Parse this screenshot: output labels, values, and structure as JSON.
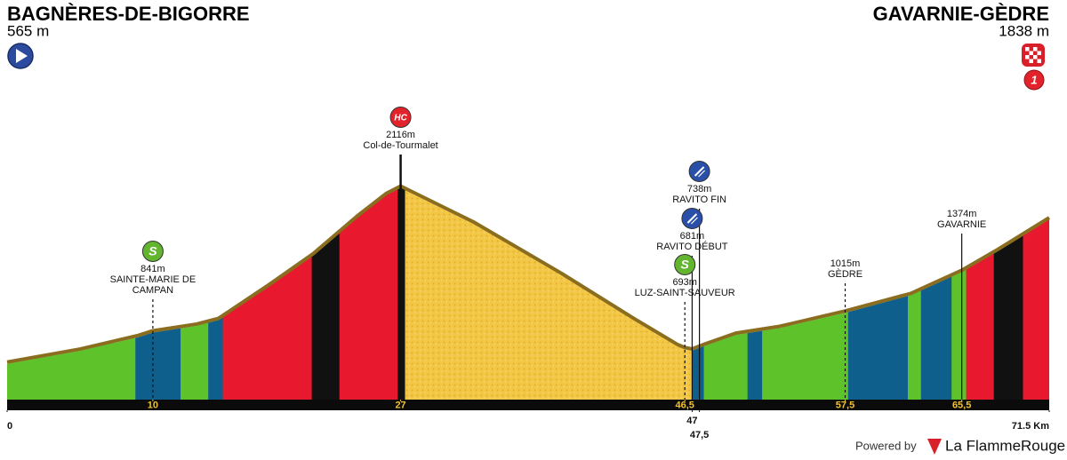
{
  "header": {
    "start": {
      "name": "BAGNÈRES-DE-BIGORRE",
      "elevation": 565,
      "elevation_label": "565 m"
    },
    "finish": {
      "name": "GAVARNIE-GÈDRE",
      "elevation": 1838,
      "elevation_label": "1838 m",
      "badge": "1"
    }
  },
  "chart_data": {
    "type": "area",
    "x": [
      0,
      5,
      9,
      10,
      13,
      14.5,
      18,
      21,
      24,
      26,
      27,
      32,
      38,
      43,
      46,
      46.5,
      47,
      48,
      50,
      53,
      57.5,
      62,
      65.5,
      68,
      71.5
    ],
    "values": [
      565,
      680,
      800,
      841,
      900,
      950,
      1250,
      1520,
      1850,
      2050,
      2116,
      1800,
      1350,
      950,
      720,
      693,
      681,
      730,
      820,
      880,
      1015,
      1170,
      1374,
      1560,
      1838
    ],
    "xlim": [
      0,
      71.5
    ],
    "ylim": [
      250,
      2300
    ],
    "ridge_color": "#8a6d1f",
    "segments": [
      {
        "from": 0,
        "to": 8.8,
        "color": "#5ec22b"
      },
      {
        "from": 8.8,
        "to": 11.9,
        "color": "#0e5f8c"
      },
      {
        "from": 11.9,
        "to": 13.8,
        "color": "#5ec22b"
      },
      {
        "from": 13.8,
        "to": 14.8,
        "color": "#0e5f8c"
      },
      {
        "from": 14.8,
        "to": 20.9,
        "color": "#e8182f"
      },
      {
        "from": 20.9,
        "to": 22.8,
        "color": "#111111"
      },
      {
        "from": 22.8,
        "to": 26.8,
        "color": "#e8182f"
      },
      {
        "from": 26.8,
        "to": 27.3,
        "color": "#111111"
      },
      {
        "from": 27.3,
        "to": 47.0,
        "color": "#f3c643"
      },
      {
        "from": 47.0,
        "to": 47.8,
        "color": "#0e5f8c"
      },
      {
        "from": 47.8,
        "to": 50.8,
        "color": "#5ec22b"
      },
      {
        "from": 50.8,
        "to": 51.8,
        "color": "#0e5f8c"
      },
      {
        "from": 51.8,
        "to": 57.7,
        "color": "#5ec22b"
      },
      {
        "from": 57.7,
        "to": 61.8,
        "color": "#0e5f8c"
      },
      {
        "from": 61.8,
        "to": 62.7,
        "color": "#5ec22b"
      },
      {
        "from": 62.7,
        "to": 64.8,
        "color": "#0e5f8c"
      },
      {
        "from": 64.8,
        "to": 65.8,
        "color": "#5ec22b"
      },
      {
        "from": 65.8,
        "to": 67.7,
        "color": "#e8182f"
      },
      {
        "from": 67.7,
        "to": 69.7,
        "color": "#111111"
      },
      {
        "from": 69.7,
        "to": 71.5,
        "color": "#e8182f"
      }
    ],
    "xticks": [
      10,
      27,
      {
        "value": 46.5,
        "label": "46,5"
      },
      {
        "value": 57.5,
        "label": "57,5"
      },
      {
        "value": 65.5,
        "label": "65,5"
      }
    ],
    "xticks_secondary": [
      0,
      47,
      {
        "value": 47.5,
        "label": "47,5"
      },
      {
        "value": 71.5,
        "label": "71.5 Km"
      }
    ],
    "waypoints": [
      {
        "km": 10,
        "elevation": 841,
        "elevation_label": "841m",
        "name_lines": [
          "SAINTE-MARIE DE",
          "CAMPAN"
        ],
        "icon_text": "S",
        "icon_color": "#63b52f",
        "dashed": true,
        "icon_y": 283
      },
      {
        "km": 27,
        "elevation": 2116,
        "elevation_label": "2116m",
        "name_lines": [
          "Col-de-Tourmalet"
        ],
        "icon_text": "HC",
        "icon_color": "#e3232c",
        "dashed": false,
        "icon_y": 132
      },
      {
        "km": 47.5,
        "elevation": 738,
        "elevation_label": "738m",
        "name_lines": [
          "RAVITO FIN"
        ],
        "icon_color": "#2a4fa8",
        "dashed": false,
        "icon_y": 193
      },
      {
        "km": 47,
        "elevation": 681,
        "elevation_label": "681m",
        "name_lines": [
          "RAVITO DÉBUT"
        ],
        "icon_color": "#2a4fa8",
        "dashed": false,
        "icon_y": 246
      },
      {
        "km": 46.5,
        "elevation": 693,
        "elevation_label": "693m",
        "name_lines": [
          "LUZ-SAINT-SAUVEUR"
        ],
        "icon_text": "S",
        "icon_color": "#63b52f",
        "dashed": true,
        "icon_y": 298
      },
      {
        "km": 57.5,
        "elevation": 1015,
        "elevation_label": "1015m",
        "name_lines": [
          "GÈDRE"
        ],
        "dashed": true,
        "icon_y": 285
      },
      {
        "km": 65.5,
        "elevation": 1374,
        "elevation_label": "1374m",
        "name_lines": [
          "GAVARNIE"
        ],
        "dashed": false,
        "icon_y": 229
      }
    ]
  },
  "footer": {
    "powered_by": "Powered by",
    "brand": "La FlammeRouge"
  }
}
